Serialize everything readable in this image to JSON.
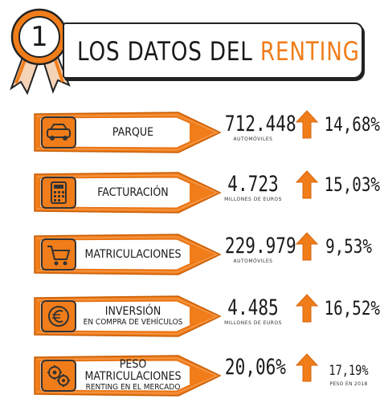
{
  "header": {
    "badge_number": "1",
    "title_prefix": "LOS DATOS DEL ",
    "title_accent": "RENTING"
  },
  "colors": {
    "accent": "#f07d1a",
    "ink": "#1a1a1a"
  },
  "rows": [
    {
      "icon": "car-icon",
      "label_line1": "PARQUE",
      "label_line2": "",
      "value": "712.448",
      "unit": "AUTOMÓVILES",
      "trend": "up",
      "percent": "14,68%",
      "percent_note": ""
    },
    {
      "icon": "calculator-icon",
      "label_line1": "FACTURACIÓN",
      "label_line2": "",
      "value": "4.723",
      "unit": "MILLONES DE EUROS",
      "trend": "up",
      "percent": "15,03%",
      "percent_note": ""
    },
    {
      "icon": "shopping-cart-icon",
      "label_line1": "MATRICULACIONES",
      "label_line2": "",
      "value": "229.979",
      "unit": "AUTOMÓVILES",
      "trend": "up",
      "percent": "9,53%",
      "percent_note": ""
    },
    {
      "icon": "euro-coin-icon",
      "label_line1": "INVERSIÓN",
      "label_line2": "EN COMPRA DE VEHÍCULOS",
      "value": "4.485",
      "unit": "MILLONES DE EUROS",
      "trend": "up",
      "percent": "16,52%",
      "percent_note": ""
    },
    {
      "icon": "gears-icon",
      "label_line1": "PESO MATRICULACIONES",
      "label_line2": "RENTING EN EL MERCADO",
      "value": "20,06%",
      "unit": "",
      "trend": "up",
      "percent": "17,19%",
      "percent_note": "PESO EN 2018"
    }
  ]
}
